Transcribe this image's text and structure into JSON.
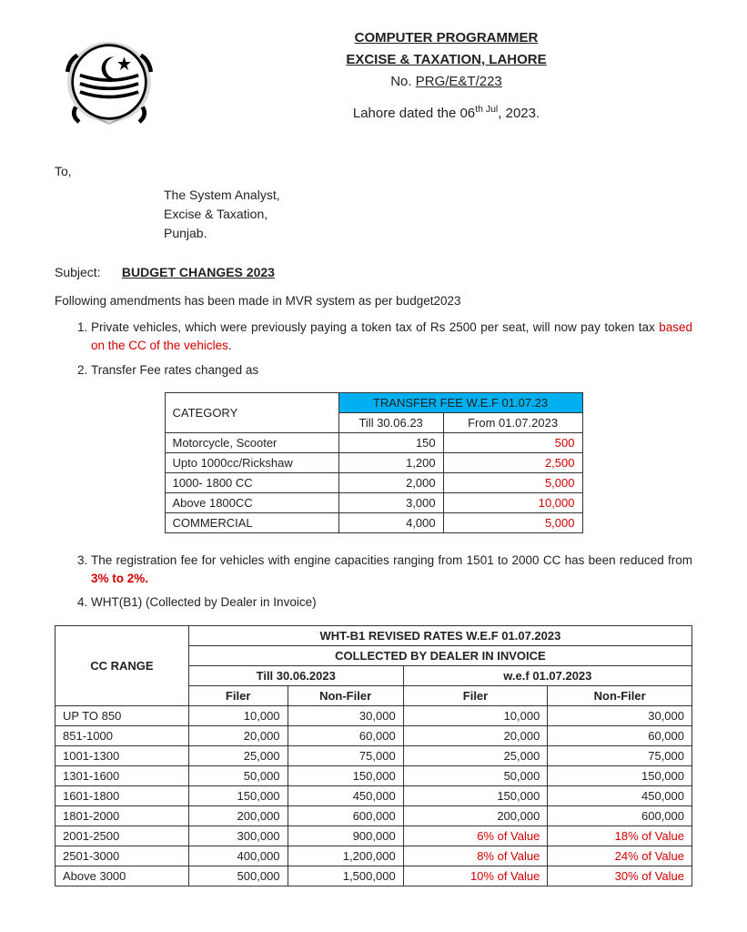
{
  "header": {
    "line1": "COMPUTER PROGRAMMER",
    "line2": "EXCISE & TAXATION, LAHORE",
    "ref_prefix": "No. ",
    "ref_no": "PRG/E&T/223",
    "date_text": "Lahore dated the 06",
    "date_sup": "th Jul",
    "date_tail": ", 2023."
  },
  "to": {
    "to_label": "To,",
    "line1": "The System Analyst,",
    "line2": "Excise & Taxation,",
    "line3": "Punjab."
  },
  "subject": {
    "label": "Subject:",
    "text": "BUDGET CHANGES 2023"
  },
  "intro": "Following amendments has been made in MVR system as per budget2023",
  "amend1": {
    "pre": "Private vehicles, which were previously paying a token tax of Rs 2500 per seat, will now pay token tax ",
    "red": "based on the CC of the vehicles",
    "post": "."
  },
  "amend2": " Transfer Fee rates changed as",
  "amend3": {
    "pre": "The registration fee for vehicles with engine capacities ranging from 1501 to 2000 CC has been reduced from ",
    "red": "3% to 2%.",
    "post": ""
  },
  "amend4": "WHT(B1) (Collected by Dealer in Invoice)",
  "transfer_table": {
    "cat_label": "CATEGORY",
    "header_top": "TRANSFER FEE W.E.F 01.07.23",
    "col_till": "Till 30.06.23",
    "col_from": "From 01.07.2023",
    "rows": [
      {
        "cat": "Motorcycle, Scooter",
        "till": "150",
        "from": "500"
      },
      {
        "cat": "Upto 1000cc/Rickshaw",
        "till": "1,200",
        "from": "2,500"
      },
      {
        "cat": "1000- 1800 CC",
        "till": "2,000",
        "from": "5,000"
      },
      {
        "cat": "Above 1800CC",
        "till": "3,000",
        "from": "10,000"
      },
      {
        "cat": "COMMERCIAL",
        "till": "4,000",
        "from": "5,000"
      }
    ]
  },
  "wht_table": {
    "cc_label": "CC RANGE",
    "top": "WHT-B1   REVISED RATES  W.E.F 01.07.2023",
    "sub": "COLLECTED BY DEALER IN INVOICE",
    "till": "Till 30.06.2023",
    "wef": "w.e.f 01.07.2023",
    "filer": "Filer",
    "nonfiler": "Non-Filer",
    "rows": [
      {
        "cc": "UP TO 850",
        "tf": "10,000",
        "tnf": "30,000",
        "wf": "10,000",
        "wnf": "30,000",
        "red": false
      },
      {
        "cc": "851-1000",
        "tf": "20,000",
        "tnf": "60,000",
        "wf": "20,000",
        "wnf": "60,000",
        "red": false
      },
      {
        "cc": "1001-1300",
        "tf": "25,000",
        "tnf": "75,000",
        "wf": "25,000",
        "wnf": "75,000",
        "red": false
      },
      {
        "cc": "1301-1600",
        "tf": "50,000",
        "tnf": "150,000",
        "wf": "50,000",
        "wnf": "150,000",
        "red": false
      },
      {
        "cc": "1601-1800",
        "tf": "150,000",
        "tnf": "450,000",
        "wf": "150,000",
        "wnf": "450,000",
        "red": false
      },
      {
        "cc": "1801-2000",
        "tf": "200,000",
        "tnf": "600,000",
        "wf": "200,000",
        "wnf": "600,000",
        "red": false
      },
      {
        "cc": "2001-2500",
        "tf": "300,000",
        "tnf": "900,000",
        "wf": "6% of Value",
        "wnf": "18% of Value",
        "red": true
      },
      {
        "cc": "2501-3000",
        "tf": "400,000",
        "tnf": "1,200,000",
        "wf": "8% of Value",
        "wnf": "24% of Value",
        "red": true
      },
      {
        "cc": "Above 3000",
        "tf": "500,000",
        "tnf": "1,500,000",
        "wf": "10% of Value",
        "wnf": "30% of Value",
        "red": true
      }
    ]
  },
  "colors": {
    "highlight_blue": "#00b0f0",
    "emphasis_red": "#d00000",
    "border": "#333333"
  }
}
